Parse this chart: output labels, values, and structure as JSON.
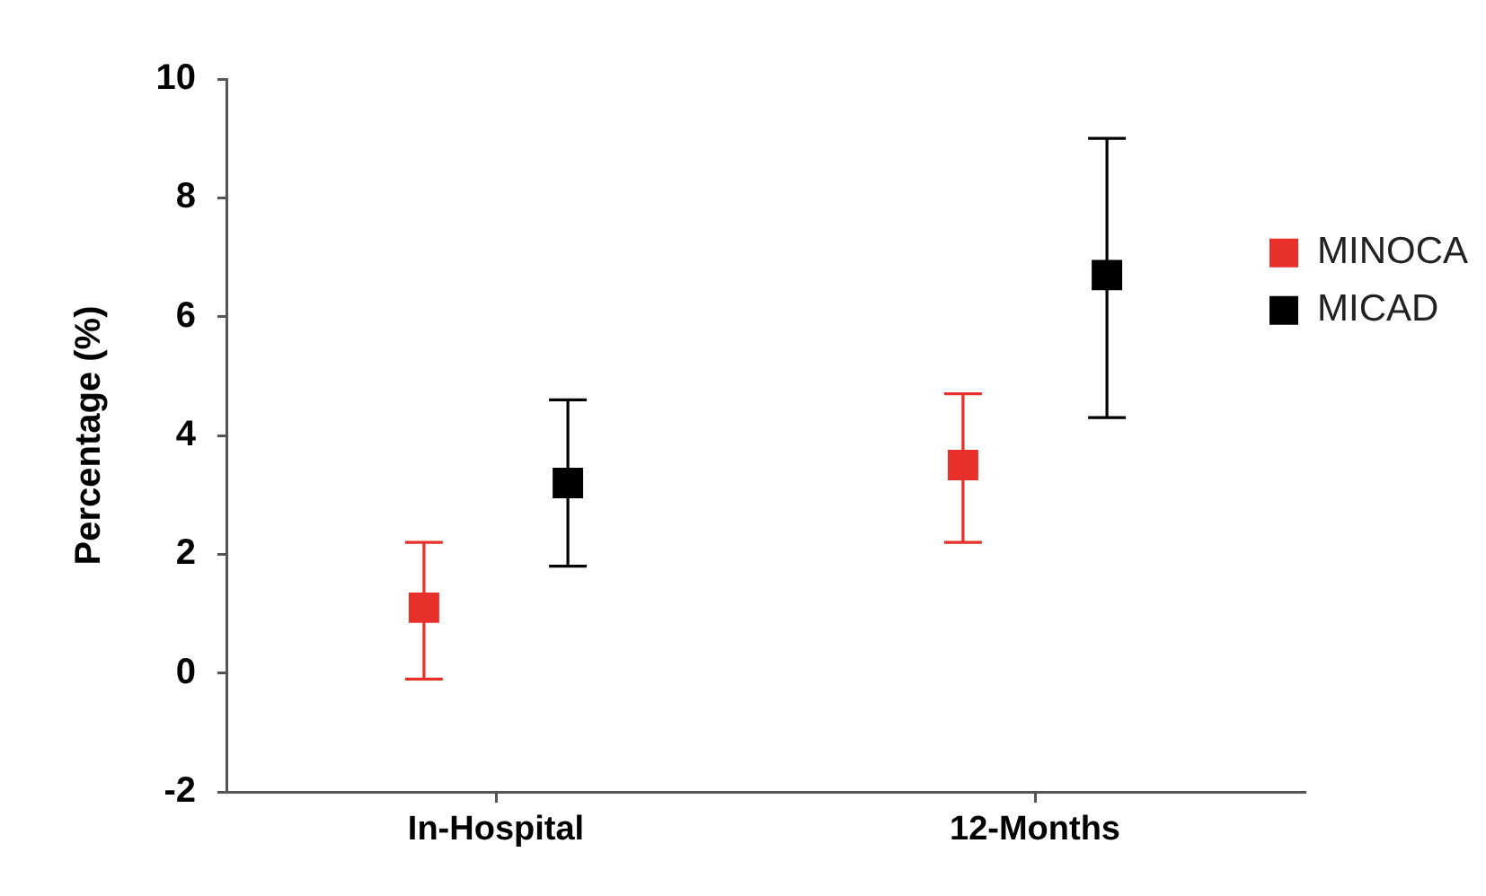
{
  "chart_data": {
    "type": "scatter",
    "ylabel": "Percentage (%)",
    "categories": [
      "In-Hospital",
      "12-Months"
    ],
    "series": [
      {
        "name": "MINOCA",
        "color": "#e8302a",
        "values": [
          1.1,
          3.5
        ],
        "errors": [
          [
            -0.1,
            2.2
          ],
          [
            2.2,
            4.7
          ]
        ]
      },
      {
        "name": "MICAD",
        "color": "#000000",
        "values": [
          3.2,
          6.7
        ],
        "errors": [
          [
            1.8,
            4.6
          ],
          [
            4.3,
            9.0
          ]
        ]
      }
    ],
    "ylim": [
      -2,
      10
    ],
    "yticks": [
      -2,
      0,
      2,
      4,
      6,
      8,
      10
    ],
    "legend": "right",
    "marker": "square"
  }
}
